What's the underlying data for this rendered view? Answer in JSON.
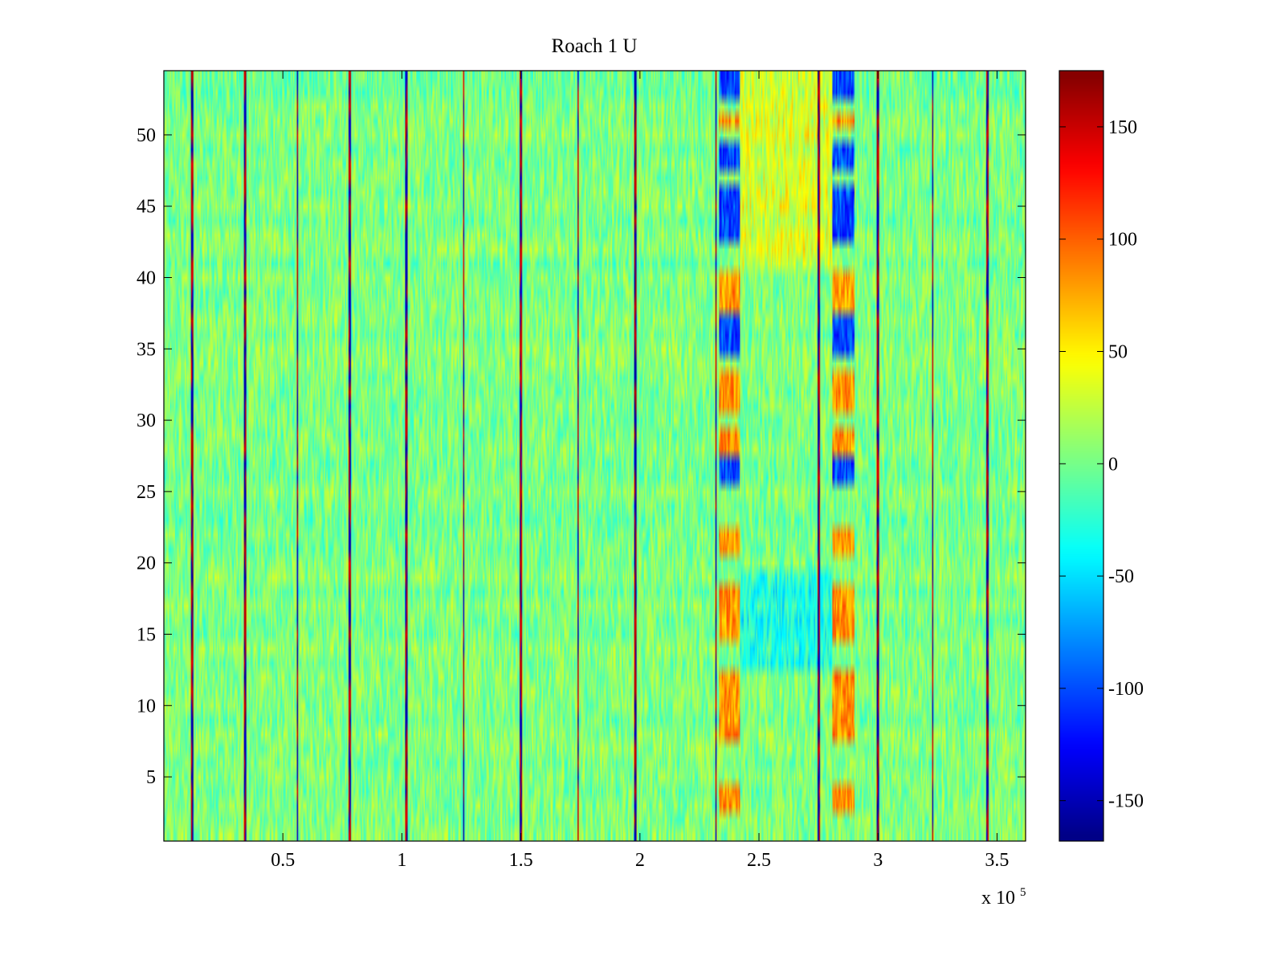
{
  "chart_data": {
    "type": "heatmap",
    "title": "Roach 1 U",
    "xlabel": "",
    "ylabel": "",
    "x_exponent_label": "x 10",
    "x_exponent_power": "5",
    "xlim": [
      0,
      3.62
    ],
    "ylim": [
      0.5,
      54.5
    ],
    "x_ticks": [
      0.5,
      1,
      1.5,
      2,
      2.5,
      3,
      3.5
    ],
    "x_tick_labels": [
      "0.5",
      "1",
      "1.5",
      "2",
      "2.5",
      "3",
      "3.5"
    ],
    "y_ticks": [
      5,
      10,
      15,
      20,
      25,
      30,
      35,
      40,
      45,
      50
    ],
    "y_tick_labels": [
      "5",
      "10",
      "15",
      "20",
      "25",
      "30",
      "35",
      "40",
      "45",
      "50"
    ],
    "rows": 54,
    "colormap": "jet",
    "clim": [
      -168,
      175
    ],
    "colorbar_ticks": [
      150,
      100,
      50,
      0,
      -50,
      -100,
      -150
    ],
    "colorbar_tick_labels": [
      "150",
      "100",
      "50",
      "0",
      "-50",
      "-100",
      "-150"
    ],
    "background_value": 0,
    "noise_range": [
      -25,
      30
    ],
    "vertical_event_lines_x": [
      0.12,
      0.34,
      0.56,
      0.78,
      1.02,
      1.26,
      1.5,
      1.74,
      1.98,
      2.32,
      2.75,
      3.0,
      3.23,
      3.46
    ],
    "stimulus_bands": [
      {
        "x_range": [
          2.33,
          2.42
        ],
        "description": "strong alternating response band"
      },
      {
        "x_range": [
          2.81,
          2.9
        ],
        "description": "strong alternating response band"
      }
    ],
    "negative_rows_in_bands": [
      43,
      44,
      45,
      46,
      48,
      49,
      53,
      54,
      36,
      37,
      35,
      26,
      27
    ],
    "positive_rows_in_bands": [
      39,
      40,
      38,
      31,
      32,
      33,
      28,
      29,
      15,
      16,
      17,
      18,
      10,
      11,
      12,
      8,
      9,
      3,
      4,
      21,
      22,
      51
    ]
  }
}
